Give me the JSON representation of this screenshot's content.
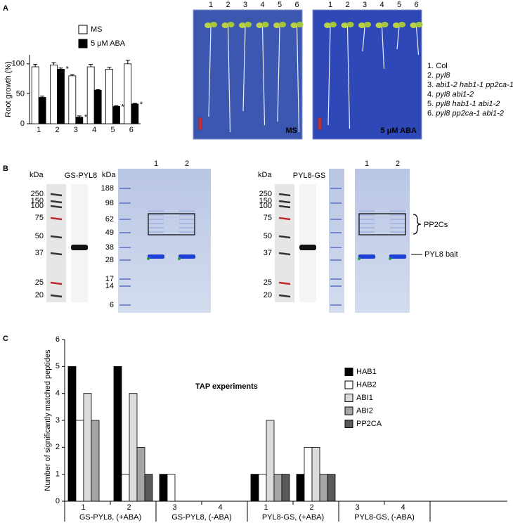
{
  "panel_labels": [
    "A",
    "B",
    "C"
  ],
  "chart_data": [
    {
      "type": "bar",
      "y_label": "Root growth (%)",
      "categories": [
        "1",
        "2",
        "3",
        "4",
        "5",
        "6"
      ],
      "ylim": [
        0,
        115
      ],
      "yticks": [
        0,
        50,
        100
      ],
      "series": [
        {
          "name": "MS",
          "color": "#ffffff",
          "values": [
            95,
            98,
            80,
            95,
            91,
            100
          ],
          "errors": [
            4,
            4,
            2,
            4,
            3,
            6
          ]
        },
        {
          "name": "5 μM ABA",
          "color": "#000000",
          "values": [
            44,
            91,
            11,
            56,
            29,
            33
          ],
          "errors": [
            2,
            2,
            2,
            1,
            1,
            1
          ],
          "significance": [
            null,
            "*",
            "*",
            null,
            "*",
            "*"
          ]
        }
      ]
    },
    {
      "type": "bar",
      "y_label": "Number of significantly matched peptides",
      "annotation": "TAP experiments",
      "categories": [
        "1",
        "2",
        "3",
        "4",
        "1",
        "2",
        "3",
        "4"
      ],
      "group_labels": [
        "GS-PYL8, (+ABA)",
        "GS-PYL8, (-ABA)",
        "PYL8-GS, (+ABA)",
        "PYL8-GS, (-ABA)"
      ],
      "ylim": [
        0,
        6
      ],
      "yticks": [
        0,
        1,
        2,
        3,
        4,
        5,
        6
      ],
      "series": [
        {
          "name": "HAB1",
          "color": "#000000",
          "values": [
            5,
            5,
            1,
            0,
            1,
            1,
            0,
            0
          ]
        },
        {
          "name": "HAB2",
          "color": "#ffffff",
          "values": [
            3,
            1,
            1,
            0,
            1,
            2,
            0,
            0
          ]
        },
        {
          "name": "ABI1",
          "color": "#dcdcdc",
          "values": [
            4,
            4,
            0,
            0,
            3,
            2,
            0,
            0
          ]
        },
        {
          "name": "ABI2",
          "color": "#a6a6a6",
          "values": [
            3,
            2,
            0,
            0,
            1,
            1,
            0,
            0
          ]
        },
        {
          "name": "PP2CA",
          "color": "#595959",
          "values": [
            0,
            1,
            0,
            0,
            1,
            1,
            0,
            0
          ]
        }
      ]
    }
  ],
  "seedlings": {
    "lanes": [
      "1",
      "2",
      "3",
      "4",
      "5",
      "6"
    ],
    "genotypes": [
      {
        "number": "1.",
        "name": "Col"
      },
      {
        "number": "2.",
        "name": "pyl8"
      },
      {
        "number": "3.",
        "name": "abi1-2 hab1-1 pp2ca-1"
      },
      {
        "number": "4.",
        "name": "pyl8 abi1-2"
      },
      {
        "number": "5.",
        "name": "pyl8 hab1-1 abi1-2"
      },
      {
        "number": "6.",
        "name": "pyl8 pp2ca-1 abi1-2"
      }
    ]
  },
  "gels": {
    "unit": "kDa",
    "western_markers": [
      250,
      150,
      100,
      75,
      50,
      37,
      25,
      20
    ],
    "coomassie_markers": [
      188,
      98,
      62,
      49,
      38,
      28,
      17,
      14,
      6
    ],
    "constructs": [
      "GS-PYL8",
      "PYL8-GS"
    ],
    "lanes": [
      "1",
      "2"
    ],
    "band_labels": [
      "PP2Cs",
      "PYL8 bait"
    ]
  }
}
